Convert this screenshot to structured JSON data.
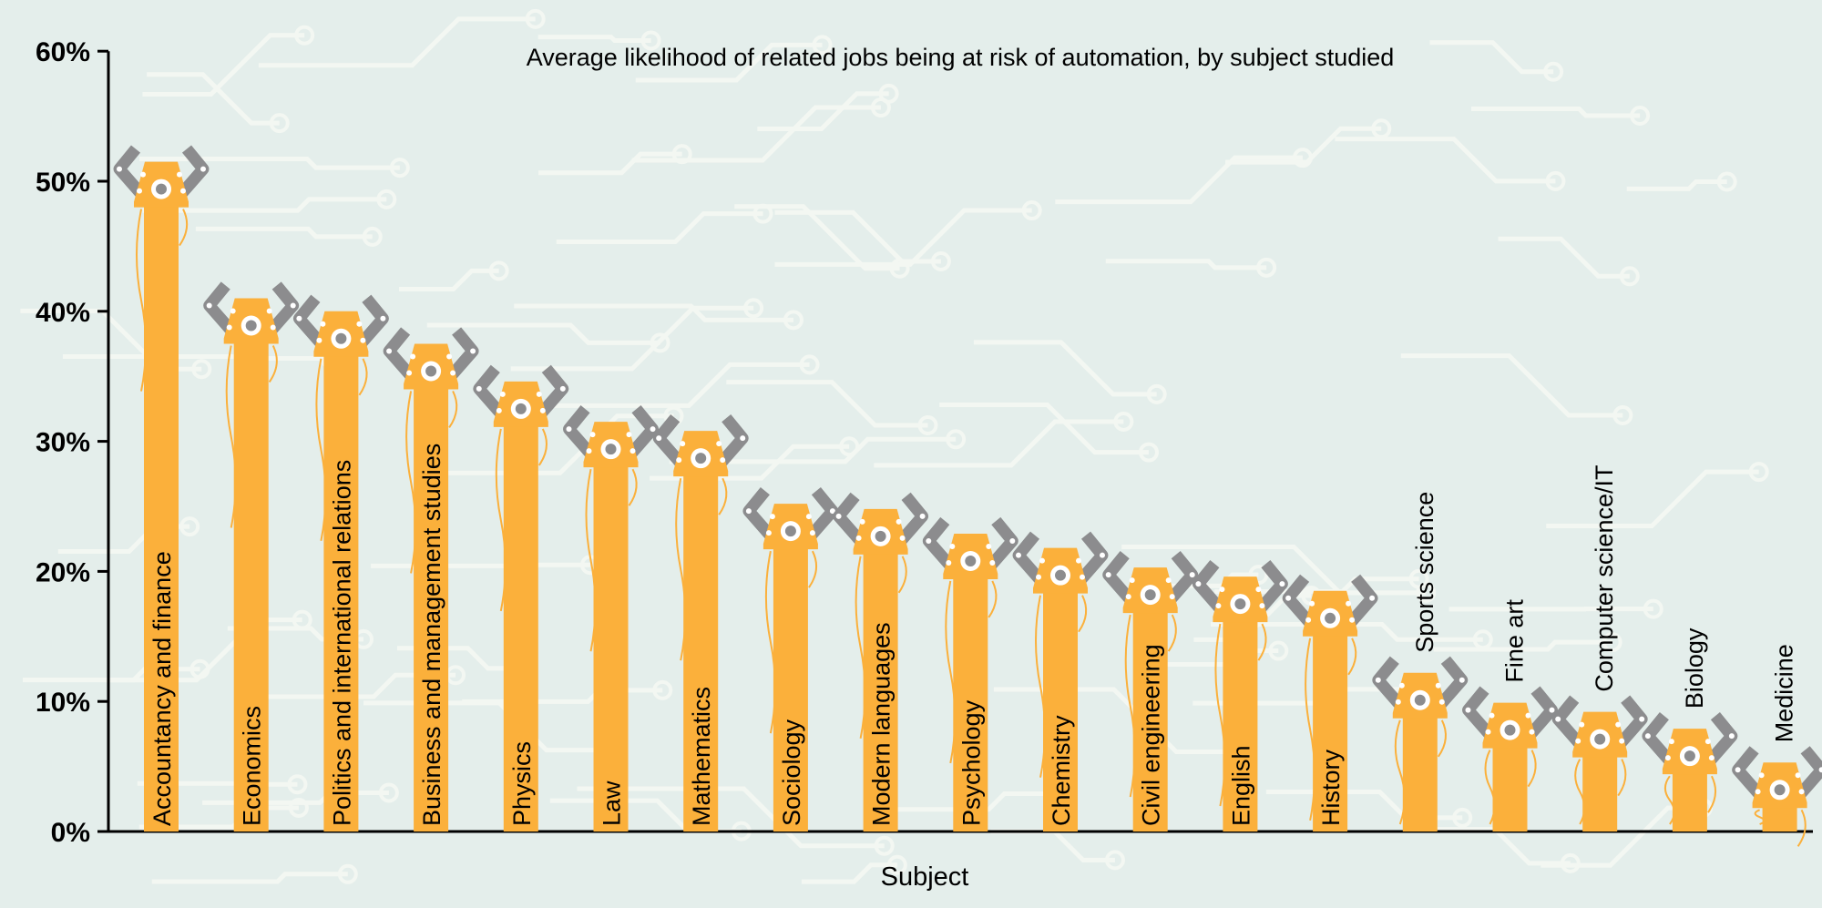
{
  "chart_data": {
    "type": "bar",
    "title": "Average likelihood of related jobs being at risk of automation, by subject studied",
    "xlabel": "Subject",
    "ylabel": "",
    "ylim": [
      0,
      60
    ],
    "yticks": [
      "0%",
      "10%",
      "20%",
      "30%",
      "40%",
      "50%",
      "60%"
    ],
    "grid": false,
    "categories": [
      "Accountancy and finance",
      "Economics",
      "Politics and international relations",
      "Business and management studies",
      "Physics",
      "Law",
      "Mathematics",
      "Sociology",
      "Modern languages",
      "Psychology",
      "Chemistry",
      "Civil engineering",
      "English",
      "History",
      "Sports science",
      "Fine art",
      "Computer science/IT",
      "Biology",
      "Medicine"
    ],
    "values": [
      49.4,
      38.9,
      37.9,
      35.4,
      32.5,
      29.4,
      28.7,
      23.1,
      22.7,
      20.8,
      19.7,
      18.2,
      17.5,
      16.4,
      10.1,
      7.8,
      7.1,
      5.8,
      3.2
    ],
    "colors": {
      "bar": "#fbb03b",
      "claw": "#8c8c8e",
      "background": "#e4eeeb",
      "circuit": "#f3f7f2"
    }
  }
}
